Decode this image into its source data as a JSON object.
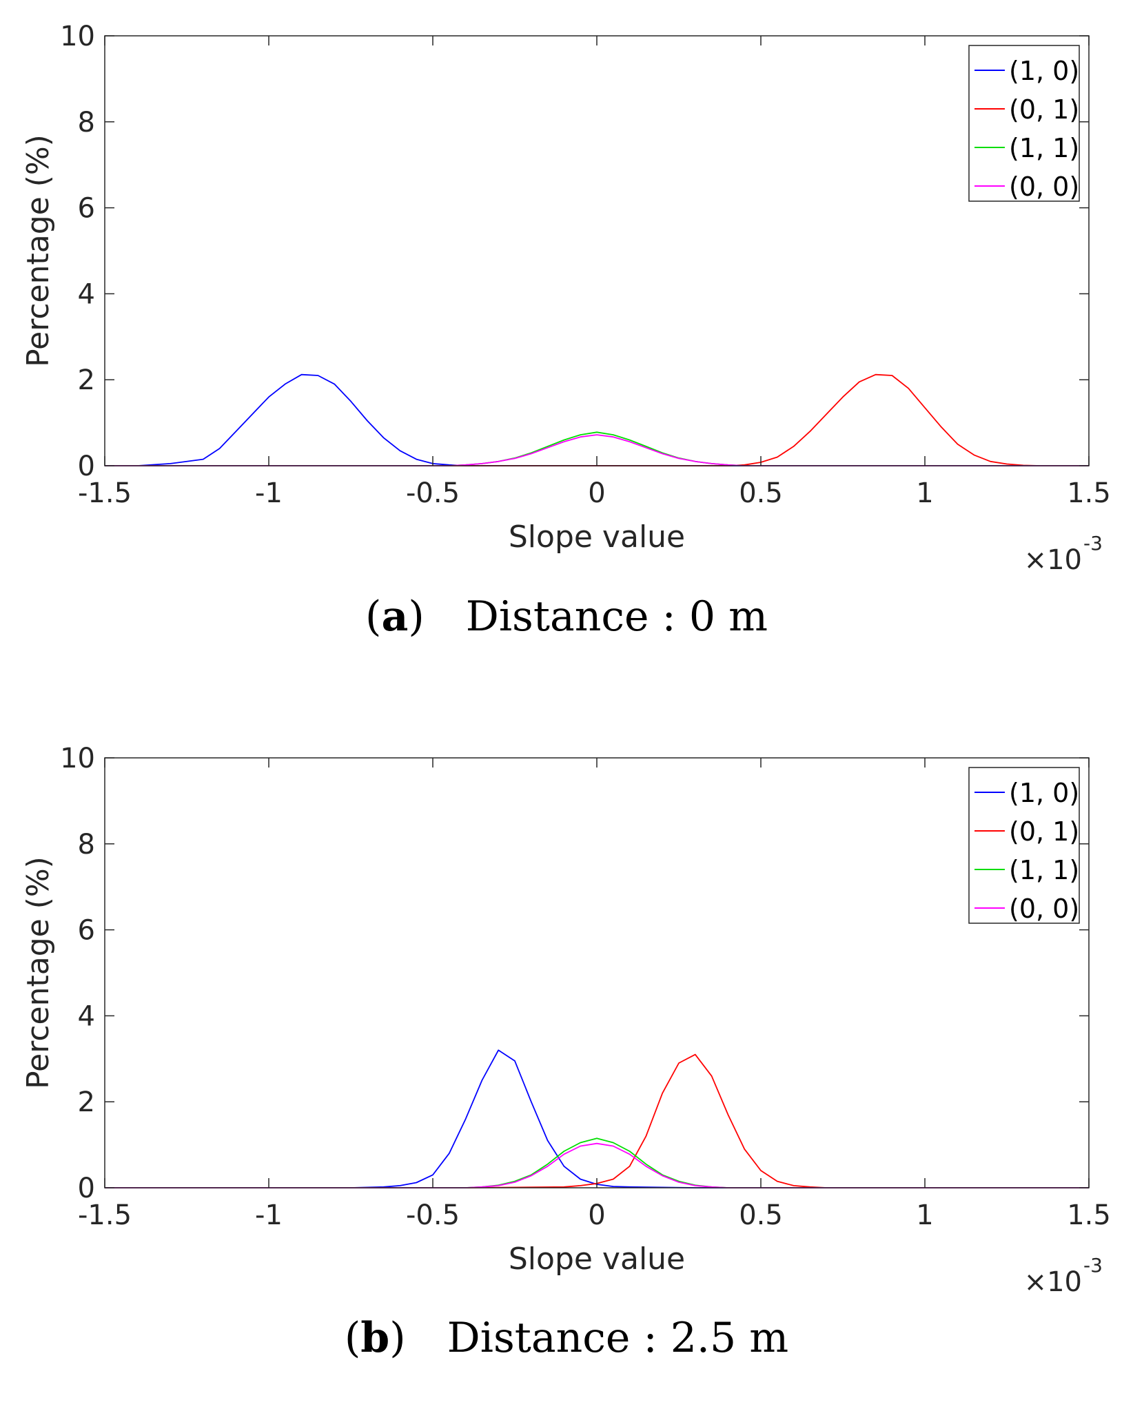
{
  "chart_data": [
    {
      "type": "line",
      "panel": "a",
      "caption_label": "a",
      "caption_text": "Distance : 0 m",
      "xlabel": "Slope value",
      "ylabel": "Percentage (%)",
      "x_multiplier": "×10",
      "x_multiplier_exp": "-3",
      "xlim": [
        -1.5,
        1.5
      ],
      "ylim": [
        0,
        10
      ],
      "xticks": [
        -1.5,
        -1,
        -0.5,
        0,
        0.5,
        1,
        1.5
      ],
      "xtick_labels": [
        "-1.5",
        "-1",
        "-0.5",
        "0",
        "0.5",
        "1",
        "1.5"
      ],
      "yticks": [
        0,
        2,
        4,
        6,
        8,
        10
      ],
      "ytick_labels": [
        "0",
        "2",
        "4",
        "6",
        "8",
        "10"
      ],
      "legend_location": "top-right",
      "series": [
        {
          "name": "(1, 0)",
          "color": "#0000ff",
          "x": [
            -1.5,
            -1.4,
            -1.3,
            -1.2,
            -1.15,
            -1.1,
            -1.05,
            -1.0,
            -0.95,
            -0.9,
            -0.85,
            -0.8,
            -0.75,
            -0.7,
            -0.65,
            -0.6,
            -0.55,
            -0.5,
            -0.45,
            -0.4,
            1.5
          ],
          "y": [
            0,
            0,
            0.05,
            0.15,
            0.4,
            0.8,
            1.2,
            1.6,
            1.9,
            2.12,
            2.1,
            1.9,
            1.5,
            1.05,
            0.65,
            0.35,
            0.15,
            0.05,
            0.02,
            0,
            0
          ]
        },
        {
          "name": "(0, 1)",
          "color": "#ff0000",
          "x": [
            -1.5,
            0.4,
            0.45,
            0.5,
            0.55,
            0.6,
            0.65,
            0.7,
            0.75,
            0.8,
            0.85,
            0.9,
            0.95,
            1.0,
            1.05,
            1.1,
            1.15,
            1.2,
            1.25,
            1.3,
            1.35,
            1.5
          ],
          "y": [
            0,
            0,
            0.02,
            0.08,
            0.2,
            0.45,
            0.8,
            1.2,
            1.6,
            1.95,
            2.12,
            2.1,
            1.8,
            1.35,
            0.9,
            0.5,
            0.25,
            0.1,
            0.04,
            0.01,
            0,
            0
          ]
        },
        {
          "name": "(1, 1)",
          "color": "#00dd00",
          "x": [
            -1.5,
            -0.45,
            -0.4,
            -0.35,
            -0.3,
            -0.25,
            -0.2,
            -0.15,
            -0.1,
            -0.05,
            0,
            0.05,
            0.1,
            0.15,
            0.2,
            0.25,
            0.3,
            0.35,
            0.4,
            0.45,
            1.5
          ],
          "y": [
            0,
            0,
            0.02,
            0.05,
            0.1,
            0.18,
            0.3,
            0.45,
            0.6,
            0.72,
            0.78,
            0.72,
            0.6,
            0.45,
            0.3,
            0.18,
            0.1,
            0.05,
            0.02,
            0,
            0
          ]
        },
        {
          "name": "(0, 0)",
          "color": "#ff00ff",
          "x": [
            -1.5,
            -0.45,
            -0.4,
            -0.35,
            -0.3,
            -0.25,
            -0.2,
            -0.15,
            -0.1,
            -0.05,
            0,
            0.05,
            0.1,
            0.15,
            0.2,
            0.25,
            0.3,
            0.35,
            0.4,
            0.45,
            1.5
          ],
          "y": [
            0,
            0,
            0.02,
            0.05,
            0.1,
            0.17,
            0.28,
            0.42,
            0.56,
            0.67,
            0.72,
            0.67,
            0.56,
            0.42,
            0.28,
            0.17,
            0.1,
            0.05,
            0.02,
            0,
            0
          ]
        }
      ]
    },
    {
      "type": "line",
      "panel": "b",
      "caption_label": "b",
      "caption_text": "Distance : 2.5 m",
      "xlabel": "Slope value",
      "ylabel": "Percentage (%)",
      "x_multiplier": "×10",
      "x_multiplier_exp": "-3",
      "xlim": [
        -1.5,
        1.5
      ],
      "ylim": [
        0,
        10
      ],
      "xticks": [
        -1.5,
        -1,
        -0.5,
        0,
        0.5,
        1,
        1.5
      ],
      "xtick_labels": [
        "-1.5",
        "-1",
        "-0.5",
        "0",
        "0.5",
        "1",
        "1.5"
      ],
      "yticks": [
        0,
        2,
        4,
        6,
        8,
        10
      ],
      "ytick_labels": [
        "0",
        "2",
        "4",
        "6",
        "8",
        "10"
      ],
      "legend_location": "top-right",
      "series": [
        {
          "name": "(1, 0)",
          "color": "#0000ff",
          "x": [
            -1.5,
            -0.75,
            -0.65,
            -0.6,
            -0.55,
            -0.5,
            -0.45,
            -0.4,
            -0.35,
            -0.3,
            -0.25,
            -0.2,
            -0.15,
            -0.1,
            -0.05,
            0,
            0.05,
            0.1,
            0.2,
            0.3,
            0.4,
            1.5
          ],
          "y": [
            0,
            0,
            0.02,
            0.05,
            0.12,
            0.3,
            0.8,
            1.6,
            2.5,
            3.2,
            2.95,
            2.0,
            1.1,
            0.5,
            0.2,
            0.08,
            0.03,
            0.02,
            0.01,
            0,
            0,
            0
          ]
        },
        {
          "name": "(0, 1)",
          "color": "#ff0000",
          "x": [
            -1.5,
            -0.4,
            -0.1,
            -0.05,
            0,
            0.05,
            0.1,
            0.15,
            0.2,
            0.25,
            0.3,
            0.35,
            0.4,
            0.45,
            0.5,
            0.55,
            0.6,
            0.65,
            0.7,
            1.5
          ],
          "y": [
            0,
            0,
            0.02,
            0.05,
            0.1,
            0.2,
            0.5,
            1.2,
            2.2,
            2.9,
            3.1,
            2.6,
            1.7,
            0.9,
            0.4,
            0.15,
            0.05,
            0.02,
            0,
            0
          ]
        },
        {
          "name": "(1, 1)",
          "color": "#00dd00",
          "x": [
            -1.5,
            -0.4,
            -0.35,
            -0.3,
            -0.25,
            -0.2,
            -0.15,
            -0.1,
            -0.05,
            0,
            0.05,
            0.1,
            0.15,
            0.2,
            0.25,
            0.3,
            0.35,
            0.4,
            1.5
          ],
          "y": [
            0,
            0,
            0.02,
            0.06,
            0.15,
            0.3,
            0.55,
            0.85,
            1.05,
            1.15,
            1.05,
            0.85,
            0.55,
            0.3,
            0.15,
            0.06,
            0.02,
            0,
            0
          ]
        },
        {
          "name": "(0, 0)",
          "color": "#ff00ff",
          "x": [
            -1.5,
            -0.4,
            -0.35,
            -0.3,
            -0.25,
            -0.2,
            -0.15,
            -0.1,
            -0.05,
            0,
            0.05,
            0.1,
            0.15,
            0.2,
            0.25,
            0.3,
            0.35,
            0.4,
            1.5
          ],
          "y": [
            0,
            0,
            0.02,
            0.05,
            0.13,
            0.28,
            0.5,
            0.78,
            0.97,
            1.03,
            0.97,
            0.78,
            0.5,
            0.28,
            0.13,
            0.05,
            0.02,
            0,
            0
          ]
        }
      ]
    }
  ]
}
